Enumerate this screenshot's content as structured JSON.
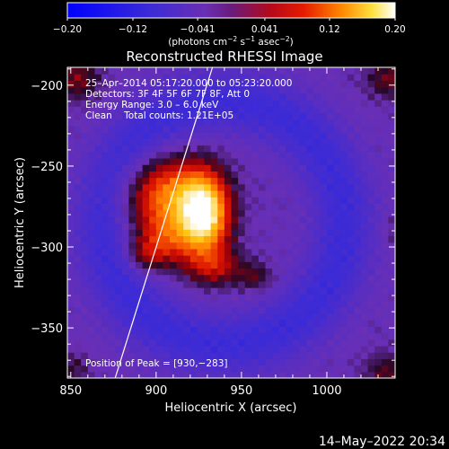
{
  "chart_data": {
    "type": "heatmap",
    "title": "Reconstructed RHESSI Image",
    "xlabel": "Heliocentric X (arcsec)",
    "ylabel": "Heliocentric Y (arcsec)",
    "xlim": [
      848,
      1040
    ],
    "ylim": [
      -381,
      -189
    ],
    "x_ticks": [
      850,
      900,
      950,
      1000
    ],
    "y_ticks": [
      -200,
      -250,
      -300,
      -350
    ],
    "x_tick_labels": [
      "850",
      "900",
      "950",
      "1000"
    ],
    "y_tick_labels": [
      "−200",
      "−250",
      "−300",
      "−350"
    ],
    "colorbar": {
      "range": [
        -0.2,
        0.2
      ],
      "ticks": [
        -0.2,
        -0.12,
        -0.041,
        0.041,
        0.12,
        0.2
      ],
      "tick_labels": [
        "−0.20",
        "−0.12",
        "−0.041",
        "0.041",
        "0.12",
        "0.20"
      ],
      "units_main": "(photons cm",
      "units_exp1": "−2",
      "units_mid1": " s",
      "units_exp2": "−1",
      "units_mid2": " asec",
      "units_exp3": "−2",
      "units_end": ")"
    },
    "annotations": {
      "time_range": "25–Apr–2014 05:17:20.000 to 05:23:20.000",
      "detectors": "Detectors: 3F 4F 5F 6F 7F 8F, Att 0",
      "energy": "Energy Range: 3.0 – 6.0 keV",
      "clean": "Clean    Total counts: 1.21E+05",
      "peak": "Position of Peak = [930,−283]"
    },
    "peak": [
      930,
      -283
    ],
    "limb_line": [
      [
        876,
        -381
      ],
      [
        933,
        -189
      ]
    ],
    "sources": [
      {
        "x": 928,
        "y": -280,
        "sx": 10,
        "sy": 17,
        "amp": 0.22
      },
      {
        "x": 907,
        "y": -268,
        "sx": 17,
        "sy": 16,
        "amp": 0.14
      },
      {
        "x": 905,
        "y": -296,
        "sx": 12,
        "sy": 11,
        "amp": 0.08
      },
      {
        "x": 935,
        "y": -312,
        "sx": 11,
        "sy": 8,
        "amp": 0.07
      },
      {
        "x": 958,
        "y": -318,
        "sx": 7,
        "sy": 6,
        "amp": 0.045
      },
      {
        "x": 893,
        "y": -305,
        "sx": 8,
        "sy": 7,
        "amp": 0.05
      }
    ],
    "edge_sources": [
      {
        "x": 854,
        "y": -196,
        "sx": 9,
        "sy": 9,
        "amp": 0.06
      },
      {
        "x": 1036,
        "y": -196,
        "sx": 9,
        "sy": 8,
        "amp": 0.055
      },
      {
        "x": 1035,
        "y": -378,
        "sx": 9,
        "sy": 9,
        "amp": 0.05
      },
      {
        "x": 851,
        "y": -375,
        "sx": 7,
        "sy": 7,
        "amp": 0.035
      },
      {
        "x": 1038,
        "y": -290,
        "sx": 4,
        "sy": 7,
        "amp": 0.02
      }
    ],
    "ring": {
      "x": 940,
      "y": -285,
      "rx": 70,
      "ry": 75,
      "width": 13,
      "amp": -0.06
    }
  },
  "footer": {
    "date": "14–May–2022 20:34"
  }
}
